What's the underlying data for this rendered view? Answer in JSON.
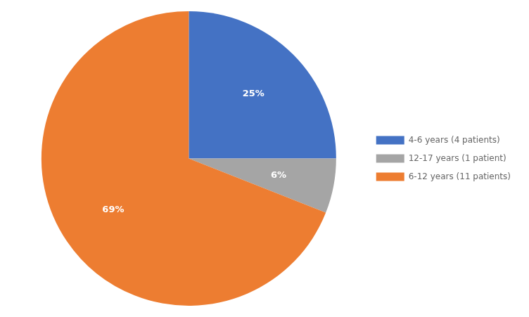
{
  "chart_data": {
    "type": "pie",
    "categories": [
      "4-6 years (4 patients)",
      "12-17 years (1 patient)",
      "6-12 years (11 patients)"
    ],
    "values": [
      25,
      6,
      69
    ],
    "value_labels": [
      "25%",
      "6%",
      "69%"
    ],
    "colors": [
      "#4472C4",
      "#A5A5A5",
      "#ED7D31"
    ],
    "data_labels": true,
    "legend": "right"
  }
}
